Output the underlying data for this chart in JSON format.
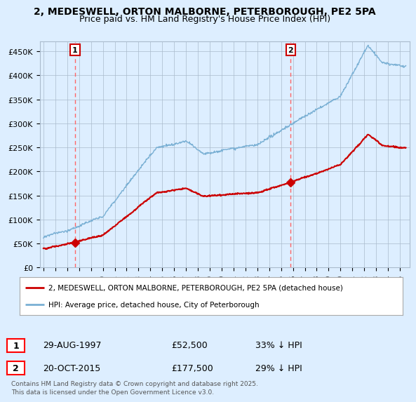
{
  "title_line1": "2, MEDESWELL, ORTON MALBORNE, PETERBOROUGH, PE2 5PA",
  "title_line2": "Price paid vs. HM Land Registry's House Price Index (HPI)",
  "ylim": [
    0,
    470000
  ],
  "yticks": [
    0,
    50000,
    100000,
    150000,
    200000,
    250000,
    300000,
    350000,
    400000,
    450000
  ],
  "ytick_labels": [
    "£0",
    "£50K",
    "£100K",
    "£150K",
    "£200K",
    "£250K",
    "£300K",
    "£350K",
    "£400K",
    "£450K"
  ],
  "sale1_date_num": 1997.66,
  "sale1_price": 52500,
  "sale1_label": "1",
  "sale2_date_num": 2015.8,
  "sale2_price": 177500,
  "sale2_label": "2",
  "legend_line1": "2, MEDESWELL, ORTON MALBORNE, PETERBOROUGH, PE2 5PA (detached house)",
  "legend_line2": "HPI: Average price, detached house, City of Peterborough",
  "footnote": "Contains HM Land Registry data © Crown copyright and database right 2025.\nThis data is licensed under the Open Government Licence v3.0.",
  "line_color_red": "#cc0000",
  "line_color_blue": "#7ab0d4",
  "background_color": "#ddeeff",
  "plot_bg_color": "#ddeeff",
  "vline_color": "#ff6666",
  "marker_color": "#cc0000",
  "grid_color": "#aabbcc",
  "xlim_left": 1994.7,
  "xlim_right": 2025.8
}
